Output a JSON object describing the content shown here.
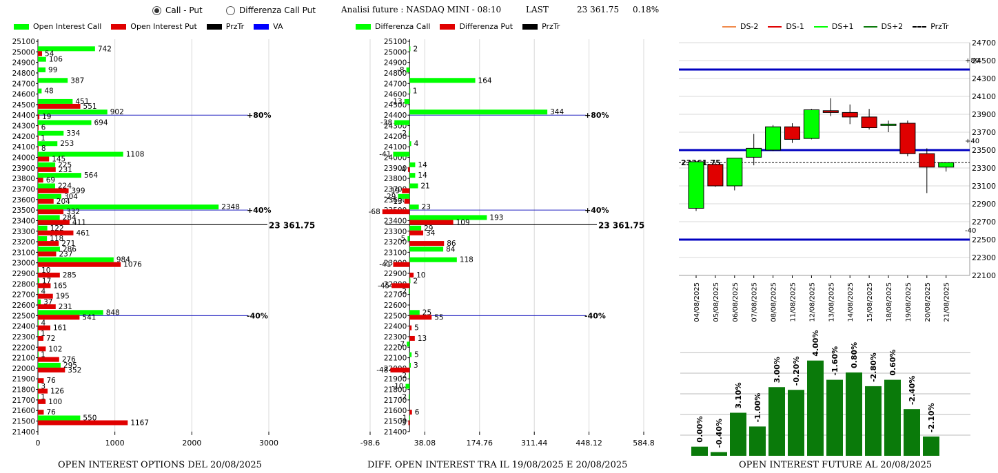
{
  "controls": {
    "radio1": "Call - Put",
    "radio2": "Differenza Call Put",
    "title": "Analisi future : NASDAQ MINI - 08:10",
    "last_label": "LAST",
    "last_value": "23 361.75",
    "last_pct": "0.18%"
  },
  "colors": {
    "green": "#00ff00",
    "red": "#e00000",
    "black": "#000000",
    "blue": "#0000ff",
    "darkgreen": "#0a7a0a",
    "orange": "#f08a4b"
  },
  "legends": {
    "oi": [
      "Open Interest Call",
      "Open Interest Put",
      "PrzTr",
      "VA"
    ],
    "diff": [
      "Differenza Call",
      "Differenza Put",
      "PrzTr"
    ],
    "candles": [
      "DS-2",
      "DS-1",
      "DS+1",
      "DS+2",
      "PrzTr"
    ]
  },
  "captions": {
    "oi": "OPEN INTEREST OPTIONS DEL 20/08/2025",
    "diff": "DIFF. OPEN INTEREST TRA IL 19/08/2025 E 20/08/2025",
    "fut": "OPEN INTEREST FUTURE AL 20/08/2025"
  },
  "chart_data": [
    {
      "type": "bar",
      "orientation": "horizontal",
      "caption": "OPEN INTEREST OPTIONS DEL 20/08/2025",
      "strikes": [
        25100,
        25000,
        24900,
        24800,
        24700,
        24600,
        24500,
        24400,
        24300,
        24200,
        24100,
        24000,
        23900,
        23800,
        23700,
        23600,
        23500,
        23400,
        23300,
        23200,
        23100,
        23000,
        22900,
        22800,
        22700,
        22600,
        22500,
        22400,
        22300,
        22200,
        22100,
        22000,
        21900,
        21800,
        21700,
        21600,
        21500,
        21400
      ],
      "series": [
        {
          "name": "Open Interest Call",
          "values": [
            null,
            742,
            106,
            99,
            387,
            48,
            451,
            902,
            694,
            334,
            253,
            1108,
            225,
            564,
            224,
            304,
            2348,
            284,
            122,
            118,
            286,
            984,
            10,
            17,
            4,
            37,
            848,
            4,
            1,
            null,
            1,
            295,
            null,
            3,
            1,
            null,
            550,
            null
          ]
        },
        {
          "name": "Open Interest Put",
          "values": [
            null,
            54,
            null,
            null,
            null,
            null,
            551,
            19,
            6,
            1,
            8,
            145,
            231,
            69,
            399,
            204,
            332,
            411,
            461,
            271,
            237,
            1076,
            285,
            165,
            195,
            231,
            541,
            161,
            72,
            102,
            276,
            352,
            76,
            126,
            100,
            76,
            1167,
            null
          ]
        }
      ],
      "xticks": [
        "0",
        "1000",
        "2000",
        "3000"
      ],
      "xlim": [
        0,
        3000
      ],
      "ref_lines": [
        {
          "strike": 24400,
          "label": "+80%"
        },
        {
          "strike": 23500,
          "label": "+40%"
        },
        {
          "strike": 22500,
          "label": "-40%"
        }
      ],
      "przTr": {
        "value": 23361.75,
        "label": "23 361.75"
      }
    },
    {
      "type": "bar",
      "orientation": "horizontal",
      "caption": "DIFF. OPEN INTEREST TRA IL 19/08/2025 E 20/08/2025",
      "strikes": [
        25100,
        25000,
        24900,
        24800,
        24700,
        24600,
        24500,
        24400,
        24300,
        24200,
        24100,
        24000,
        23900,
        23800,
        23700,
        23600,
        23500,
        23400,
        23300,
        23200,
        23100,
        23000,
        22900,
        22800,
        22700,
        22600,
        22500,
        22400,
        22300,
        22200,
        22100,
        22000,
        21900,
        21800,
        21700,
        21600,
        21500,
        21400
      ],
      "series": [
        {
          "name": "Differenza Call",
          "values": [
            null,
            2,
            null,
            -8,
            164,
            1,
            -13,
            344,
            -38,
            -2,
            4,
            -41,
            14,
            14,
            21,
            -29,
            23,
            193,
            29,
            -5,
            84,
            118,
            null,
            2,
            -2,
            null,
            25,
            null,
            null,
            -7,
            5,
            3,
            -2,
            -10,
            -2,
            null,
            -1,
            null
          ]
        },
        {
          "name": "Differenza Put",
          "values": [
            null,
            null,
            null,
            null,
            null,
            null,
            null,
            null,
            null,
            null,
            null,
            null,
            -4,
            null,
            -19,
            -13,
            -68,
            109,
            34,
            86,
            null,
            -41,
            10,
            -45,
            null,
            null,
            55,
            5,
            13,
            null,
            null,
            -48,
            null,
            null,
            null,
            6,
            -3,
            null
          ]
        }
      ],
      "xticks": [
        "-98.6",
        "38.08",
        "174.76",
        "311.44",
        "448.12",
        "584.8"
      ],
      "xlim": [
        -98.6,
        584.8
      ],
      "ref_lines": [
        {
          "strike": 24400,
          "label": "+80%"
        },
        {
          "strike": 23500,
          "label": "+40%"
        },
        {
          "strike": 22500,
          "label": "-40%"
        }
      ],
      "przTr": {
        "value": 23361.75,
        "label": "23 361.75"
      }
    },
    {
      "type": "candlestick",
      "dates": [
        "04/08/2025",
        "05/08/2025",
        "06/08/2025",
        "07/08/2025",
        "08/08/2025",
        "11/08/2025",
        "12/08/2025",
        "13/08/2025",
        "14/08/2025",
        "15/08/2025",
        "18/08/2025",
        "19/08/2025",
        "20/08/2025",
        "21/08/2025"
      ],
      "ohlc": [
        [
          22850,
          23370,
          22820,
          23370
        ],
        [
          23340,
          23360,
          23090,
          23100
        ],
        [
          23100,
          23410,
          23050,
          23410
        ],
        [
          23420,
          23680,
          23330,
          23520
        ],
        [
          23500,
          23780,
          23490,
          23760
        ],
        [
          23760,
          23800,
          23580,
          23620
        ],
        [
          23630,
          23960,
          23620,
          23950
        ],
        [
          23940,
          24080,
          23880,
          23920
        ],
        [
          23920,
          24010,
          23790,
          23870
        ],
        [
          23870,
          23960,
          23730,
          23750
        ],
        [
          23790,
          23830,
          23700,
          23790
        ],
        [
          23800,
          23830,
          23430,
          23460
        ],
        [
          23460,
          23520,
          23020,
          23310
        ],
        [
          23310,
          23360,
          23260,
          23360
        ]
      ],
      "yticks": [
        24700,
        24500,
        24300,
        24100,
        23900,
        23700,
        23500,
        23300,
        23100,
        22900,
        22700,
        22500,
        22300,
        22100
      ],
      "ylim": [
        22100,
        24700
      ],
      "levels": [
        {
          "value": 24400,
          "label": "+80"
        },
        {
          "value": 23500,
          "label": "+40"
        },
        {
          "value": 22500,
          "label": "-40"
        }
      ],
      "last": {
        "value": 23361.75,
        "label": "23361.75"
      }
    },
    {
      "type": "bar",
      "labels": [
        "0.00%",
        "-0.40%",
        "3.10%",
        "-1.00%",
        "3.00%",
        "-0.20%",
        "4.00%",
        "-1.60%",
        "0.80%",
        "-2.80%",
        "0.60%",
        "-2.40%",
        "-2.10%"
      ],
      "values": [
        1.0,
        0.4,
        4.7,
        3.2,
        7.5,
        7.2,
        10.4,
        8.3,
        9.1,
        7.6,
        8.3,
        5.1,
        2.1
      ]
    }
  ]
}
